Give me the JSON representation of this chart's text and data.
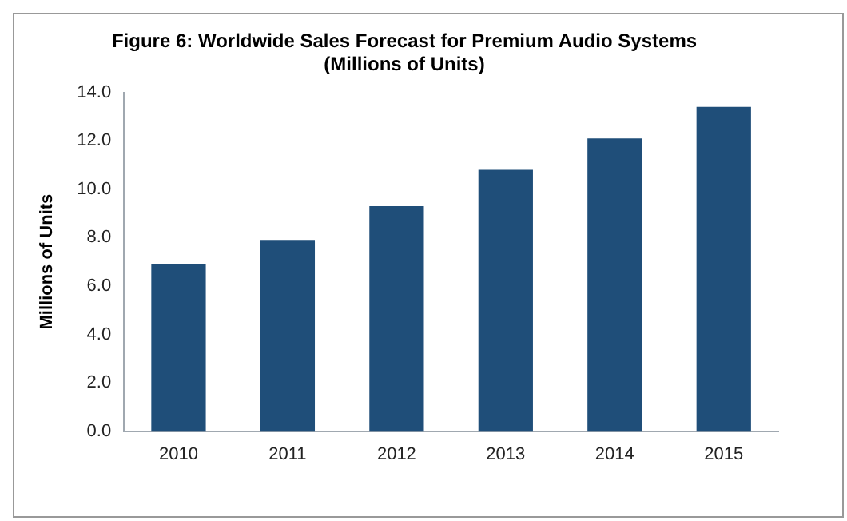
{
  "chart_data": {
    "type": "bar",
    "title": [
      "Figure 6: Worldwide Sales Forecast for Premium Audio Systems",
      "(Millions of Units)"
    ],
    "ylabel": "Millions of Units",
    "categories": [
      "2010",
      "2011",
      "2012",
      "2013",
      "2014",
      "2015"
    ],
    "values": [
      6.9,
      7.9,
      9.3,
      10.8,
      12.1,
      13.4
    ],
    "color": "#1f4e79",
    "ylim": [
      0,
      14
    ],
    "yticks": [
      {
        "value": 0,
        "label": "0.0"
      },
      {
        "value": 2,
        "label": "2.0"
      },
      {
        "value": 4,
        "label": "4.0"
      },
      {
        "value": 6,
        "label": "6.0"
      },
      {
        "value": 8,
        "label": "8.0"
      },
      {
        "value": 10,
        "label": "10.0"
      },
      {
        "value": 12,
        "label": "12.0"
      },
      {
        "value": 14,
        "label": "14.0"
      }
    ],
    "grid": false,
    "legend": false
  }
}
